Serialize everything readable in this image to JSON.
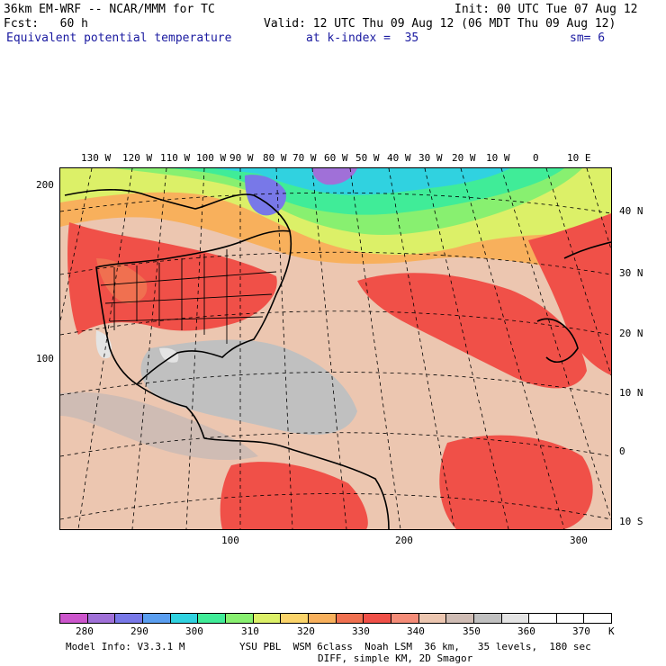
{
  "header": {
    "model": "36km EM-WRF -- NCAR/MMM for TC",
    "init": "Init: 00 UTC Tue 07 Aug 12",
    "fcst": "Fcst:   60 h",
    "valid": "Valid: 12 UTC Thu 09 Aug 12 (06 MDT Thu 09 Aug 12)",
    "field": "Equivalent potential temperature",
    "level": "at k-index =  35",
    "smooth": "sm= 6"
  },
  "map": {
    "lon_labels": [
      "130 W",
      "120 W",
      "110 W",
      "100 W",
      "90 W",
      "80 W",
      "70 W",
      "60 W",
      "50 W",
      "40 W",
      "30 W",
      "20 W",
      "10 W",
      "0",
      "10 E"
    ],
    "lat_labels": [
      "40 N",
      "30 N",
      "20 N",
      "10 N",
      "0",
      "10 S"
    ],
    "grid_y_labels": [
      "200",
      "100"
    ],
    "grid_x_labels": [
      "100",
      "200",
      "300"
    ]
  },
  "colorbar": {
    "colors": [
      "#cc55cc",
      "#a070d8",
      "#7878e8",
      "#5a9ef0",
      "#30d2e0",
      "#40ec98",
      "#88f070",
      "#dcf068",
      "#fbd46a",
      "#f8b05c",
      "#f07050",
      "#f05048",
      "#f58c78",
      "#ecc6b0",
      "#cfbcb4",
      "#c0c0c0",
      "#e4e4e4",
      "#ffffff",
      "#ffffff",
      "#ffffff"
    ],
    "tick_labels": [
      "280",
      "290",
      "300",
      "310",
      "320",
      "330",
      "340",
      "350",
      "360",
      "370"
    ],
    "unit": "K"
  },
  "footer": {
    "line1_left": "Model Info: V3.3.1 M",
    "line1_right": "YSU PBL  WSM 6class  Noah LSM  36 km,   35 levels,  180 sec",
    "line2": "DIFF, simple KM, 2D Smagor"
  }
}
